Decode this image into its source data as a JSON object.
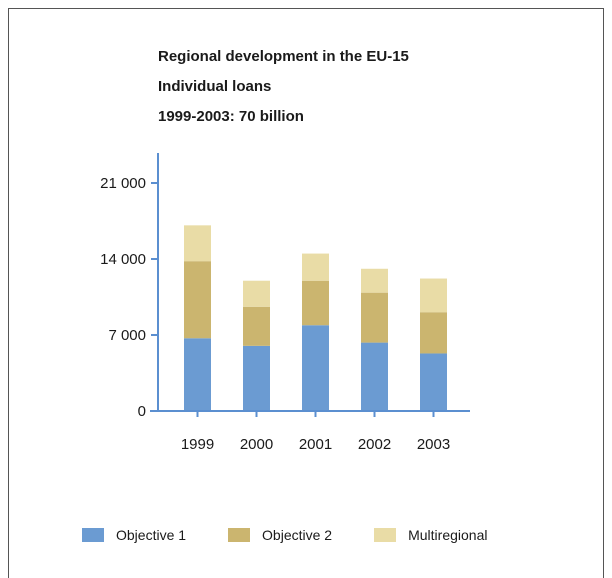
{
  "chart_data": {
    "type": "bar",
    "stacked": true,
    "title": "Regional development in the EU-15",
    "subtitle": "Individual loans",
    "subtitle2": "1999-2003: 70 billion",
    "categories": [
      "1999",
      "2000",
      "2001",
      "2002",
      "2003"
    ],
    "series": [
      {
        "name": "Objective 1",
        "color": "#6b9bd2",
        "values": [
          6700,
          6000,
          7900,
          6300,
          5300
        ]
      },
      {
        "name": "Objective 2",
        "color": "#cbb56f",
        "values": [
          7100,
          3600,
          4100,
          4600,
          3800
        ]
      },
      {
        "name": "Multiregional",
        "color": "#e9dca6",
        "values": [
          3300,
          2400,
          2500,
          2200,
          3100
        ]
      }
    ],
    "yticks": [
      0,
      7000,
      14000,
      21000
    ],
    "ytick_labels": [
      "0",
      "7 000",
      "14 000",
      "21 000"
    ],
    "ylim": [
      0,
      21000
    ],
    "xlabel": "",
    "ylabel": "",
    "grid": false,
    "legend_position": "bottom",
    "axis_color": "#5b8fd0"
  }
}
